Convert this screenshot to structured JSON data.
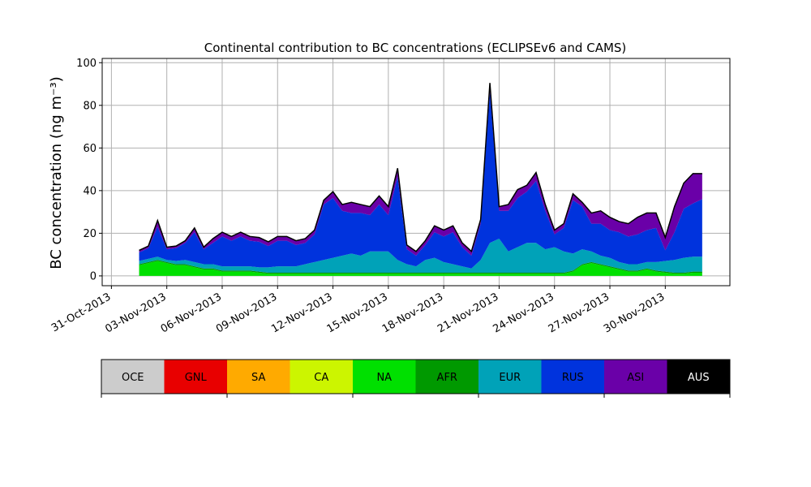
{
  "chart_data": {
    "type": "area",
    "title": "Continental contribution to BC concentrations (ECLIPSEv6 and CAMS)",
    "xlabel": "",
    "ylabel": "BC concentration (ng m⁻³)",
    "ylim": [
      -4.6,
      102
    ],
    "yticks": [
      0,
      20,
      40,
      60,
      80,
      100
    ],
    "xlim_days": [
      "2013-10-30 12:00",
      "2013-12-03 12:00"
    ],
    "xtick_labels": [
      "31-Oct-2013",
      "03-Nov-2013",
      "06-Nov-2013",
      "09-Nov-2013",
      "12-Nov-2013",
      "15-Nov-2013",
      "18-Nov-2013",
      "21-Nov-2013",
      "24-Nov-2013",
      "27-Nov-2013",
      "30-Nov-2013"
    ],
    "xtick_dates": [
      "2013-10-31",
      "2013-11-03",
      "2013-11-06",
      "2013-11-09",
      "2013-11-12",
      "2013-11-15",
      "2013-11-18",
      "2013-11-21",
      "2013-11-24",
      "2013-11-27",
      "2013-11-30"
    ],
    "grid": true,
    "x": [
      "2013-11-01 12:00",
      "2013-11-02 00:00",
      "2013-11-02 12:00",
      "2013-11-03 00:00",
      "2013-11-03 12:00",
      "2013-11-04 00:00",
      "2013-11-04 12:00",
      "2013-11-05 00:00",
      "2013-11-05 12:00",
      "2013-11-06 00:00",
      "2013-11-06 12:00",
      "2013-11-07 00:00",
      "2013-11-07 12:00",
      "2013-11-08 00:00",
      "2013-11-08 12:00",
      "2013-11-09 00:00",
      "2013-11-09 12:00",
      "2013-11-10 00:00",
      "2013-11-10 12:00",
      "2013-11-11 00:00",
      "2013-11-11 12:00",
      "2013-11-12 00:00",
      "2013-11-12 12:00",
      "2013-11-13 00:00",
      "2013-11-13 12:00",
      "2013-11-14 00:00",
      "2013-11-14 12:00",
      "2013-11-15 00:00",
      "2013-11-15 12:00",
      "2013-11-16 00:00",
      "2013-11-16 12:00",
      "2013-11-17 00:00",
      "2013-11-17 12:00",
      "2013-11-18 00:00",
      "2013-11-18 12:00",
      "2013-11-19 00:00",
      "2013-11-19 12:00",
      "2013-11-20 00:00",
      "2013-11-20 12:00",
      "2013-11-21 00:00",
      "2013-11-21 12:00",
      "2013-11-22 00:00",
      "2013-11-22 12:00",
      "2013-11-23 00:00",
      "2013-11-23 12:00",
      "2013-11-24 00:00",
      "2013-11-24 12:00",
      "2013-11-25 00:00",
      "2013-11-25 12:00",
      "2013-11-26 00:00",
      "2013-11-26 12:00",
      "2013-11-27 00:00",
      "2013-11-27 12:00",
      "2013-11-28 00:00",
      "2013-11-28 12:00",
      "2013-11-29 00:00",
      "2013-11-29 12:00",
      "2013-11-30 00:00",
      "2013-11-30 12:00",
      "2013-12-01 00:00",
      "2013-12-01 12:00",
      "2013-12-02 00:00"
    ],
    "series": [
      {
        "name": "OCE",
        "color": "#cccccc",
        "values": [
          0,
          0,
          0,
          0,
          0,
          0,
          0,
          0,
          0,
          0,
          0,
          0,
          0,
          0,
          0,
          0,
          0,
          0,
          0,
          0,
          0,
          0,
          0,
          0,
          0,
          0,
          0,
          0,
          0,
          0,
          0,
          0,
          0,
          0,
          0,
          0,
          0,
          0,
          0,
          0,
          0,
          0,
          0,
          0,
          0,
          0,
          0,
          0,
          0,
          0,
          0,
          0,
          0,
          0,
          0,
          0,
          0,
          0,
          0,
          0,
          0,
          0
        ]
      },
      {
        "name": "GNL",
        "color": "#e80000",
        "values": [
          0,
          0,
          0,
          0,
          0,
          0,
          0,
          0,
          0,
          0,
          0,
          0,
          0,
          0,
          0,
          0,
          0,
          0,
          0,
          0,
          0,
          0,
          0,
          0,
          0,
          0,
          0,
          0,
          0,
          0,
          0,
          0,
          0,
          0,
          0,
          0,
          0,
          0,
          0,
          0,
          0,
          0,
          0,
          0,
          0,
          0,
          0,
          0,
          0,
          0,
          0,
          0,
          0,
          0,
          0,
          0,
          0,
          0,
          0,
          0,
          0,
          0
        ]
      },
      {
        "name": "SA",
        "color": "#ffaa00",
        "values": [
          0,
          0,
          0,
          0,
          0,
          0,
          0,
          0,
          0,
          0,
          0,
          0,
          0,
          0,
          0,
          0,
          0,
          0,
          0,
          0,
          0,
          0,
          0,
          0,
          0,
          0,
          0,
          0,
          0,
          0,
          0,
          0,
          0,
          0,
          0,
          0,
          0,
          0,
          0,
          0,
          0,
          0,
          0,
          0,
          0,
          0,
          0,
          0,
          0,
          0,
          0,
          0,
          0,
          0,
          0,
          0,
          0,
          0,
          0,
          0,
          0,
          0
        ]
      },
      {
        "name": "CA",
        "color": "#ccf500",
        "values": [
          0,
          0,
          0,
          0,
          0,
          0,
          0,
          0,
          0,
          0,
          0,
          0,
          0,
          0,
          0,
          0,
          0,
          0,
          0,
          0,
          0,
          0,
          0,
          0,
          0,
          0,
          0,
          0,
          0,
          0,
          0,
          0,
          0,
          0,
          0,
          0,
          0,
          0,
          0,
          0,
          0,
          0,
          0,
          0,
          0,
          0,
          0,
          0,
          0,
          0,
          0,
          0,
          0,
          0,
          0,
          0,
          0,
          0,
          0,
          0,
          0,
          0
        ]
      },
      {
        "name": "NA",
        "color": "#00e000",
        "values": [
          5,
          6,
          7,
          6,
          5,
          5,
          4,
          3,
          3,
          2,
          2,
          2,
          2,
          1.5,
          1,
          1,
          1,
          1,
          1,
          1,
          1,
          1,
          1,
          1,
          1,
          1,
          1,
          1,
          1,
          1,
          1,
          1,
          1,
          1,
          1,
          1,
          1,
          1,
          1,
          1,
          1,
          1,
          1,
          1,
          1,
          1,
          1,
          2,
          5,
          6,
          5,
          4,
          3,
          2,
          2,
          3,
          2,
          1.5,
          1,
          1,
          1.5,
          1.5
        ]
      },
      {
        "name": "AFR",
        "color": "#009900",
        "values": [
          0.5,
          0.5,
          0.5,
          0.5,
          0.5,
          0.5,
          0.5,
          0.5,
          0.5,
          0.5,
          0.5,
          0.5,
          0.5,
          0.5,
          0.5,
          0.5,
          0.5,
          0.5,
          0.5,
          0.5,
          0.5,
          0.5,
          0.5,
          0.5,
          0.5,
          0.5,
          0.5,
          0.5,
          0.5,
          0.5,
          0.5,
          0.5,
          0.5,
          0.5,
          0.5,
          0.5,
          0.5,
          0.5,
          0.5,
          0.5,
          0.5,
          0.5,
          0.5,
          0.5,
          0.5,
          0.5,
          0.5,
          0.5,
          0.5,
          0.5,
          0.5,
          0.5,
          0.5,
          0.5,
          0.5,
          0.5,
          0.5,
          0.5,
          0.5,
          0.5,
          0.5,
          0.5
        ]
      },
      {
        "name": "EUR",
        "color": "#00a2b8",
        "values": [
          1.5,
          1.5,
          1.5,
          1,
          1.5,
          2,
          2,
          2,
          2,
          2,
          2,
          2,
          2,
          2,
          2.5,
          3,
          3,
          3,
          4,
          5,
          6,
          7,
          8,
          9,
          8,
          10,
          10,
          10,
          6,
          4,
          3,
          6,
          7,
          5,
          4,
          3,
          2,
          6,
          14,
          16,
          10,
          12,
          14,
          14,
          11,
          12,
          10,
          8,
          7,
          5,
          4,
          4,
          3,
          3,
          3,
          3,
          4,
          5,
          6,
          7,
          7,
          7
        ]
      },
      {
        "name": "RUS",
        "color": "#0033dd",
        "values": [
          4,
          5,
          14,
          5,
          6,
          8,
          14,
          7,
          10,
          14,
          12,
          14,
          12,
          12,
          10,
          12,
          12,
          10,
          10,
          13,
          26,
          28,
          21,
          19,
          20,
          17,
          22,
          17,
          39,
          7,
          5,
          7,
          12,
          12,
          15,
          9,
          6,
          17,
          71,
          13,
          19,
          23,
          24,
          29,
          18,
          6,
          11,
          25,
          20,
          13,
          15,
          13,
          14,
          13,
          14,
          15,
          16,
          5,
          13,
          23,
          25,
          27
        ]
      },
      {
        "name": "ASI",
        "color": "#6a00a8",
        "values": [
          1,
          1,
          3,
          1,
          1,
          1,
          2,
          1,
          2,
          2,
          2,
          2,
          2,
          2,
          2,
          2,
          2,
          2,
          2,
          2,
          2,
          3,
          3,
          5,
          4,
          4,
          4,
          4,
          4,
          2,
          2,
          2,
          3,
          3,
          3,
          2,
          2,
          2,
          4,
          2,
          3,
          4,
          3,
          4,
          3,
          2,
          2,
          3,
          2,
          5,
          6,
          6,
          5,
          6,
          8,
          8,
          7,
          6,
          12,
          12,
          14,
          12
        ]
      },
      {
        "name": "AUS",
        "color": "#000000",
        "values": [
          0,
          0,
          0,
          0,
          0,
          0,
          0,
          0,
          0,
          0,
          0,
          0,
          0,
          0,
          0,
          0,
          0,
          0,
          0,
          0,
          0,
          0,
          0,
          0,
          0,
          0,
          0,
          0,
          0,
          0,
          0,
          0,
          0,
          0,
          0,
          0,
          0,
          0,
          0,
          0,
          0,
          0,
          0,
          0,
          0,
          0,
          0,
          0,
          0,
          0,
          0,
          0,
          0,
          0,
          0,
          0,
          0,
          0,
          0,
          0,
          0,
          0
        ]
      }
    ],
    "legend_placement": "below",
    "total_line_color": "#000000"
  }
}
